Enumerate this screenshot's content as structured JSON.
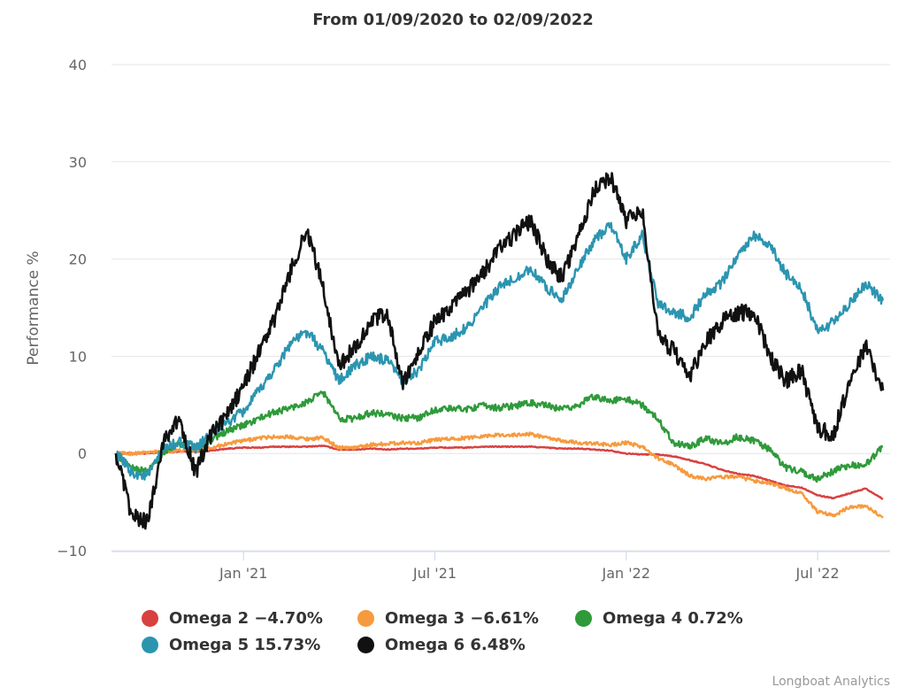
{
  "chart_data": {
    "type": "line",
    "title": "From 01/09/2020 to 02/09/2022",
    "ylabel": "Performance %",
    "xlabel": "",
    "ylim": [
      -10,
      40
    ],
    "yticks": [
      -10,
      0,
      10,
      20,
      30,
      40
    ],
    "ytick_labels": [
      "−10",
      "0",
      "10",
      "20",
      "30",
      "40"
    ],
    "xlim": [
      0,
      24.05
    ],
    "xticks": [
      {
        "label": "Jan '21",
        "x": 4.0
      },
      {
        "label": "Jul '21",
        "x": 10.0
      },
      {
        "label": "Jan '22",
        "x": 16.0
      },
      {
        "label": "Jul '22",
        "x": 22.0
      }
    ],
    "x_unit": "months since 01/09/2020",
    "grid": true,
    "legend_position": "bottom",
    "series": [
      {
        "name": "Omega 2",
        "legend_label": "Omega 2 −4.70%",
        "color": "#d94040",
        "x": [
          0,
          0.5,
          1,
          1.5,
          2,
          2.5,
          3,
          3.5,
          4,
          4.5,
          5,
          5.5,
          6,
          6.5,
          7,
          7.5,
          8,
          8.5,
          9,
          9.5,
          10,
          10.5,
          11,
          11.5,
          12,
          12.5,
          13,
          13.5,
          14,
          14.5,
          15,
          15.5,
          16,
          16.5,
          17,
          17.5,
          18,
          18.5,
          19,
          19.5,
          20,
          20.5,
          21,
          21.5,
          22,
          22.5,
          23,
          23.5,
          24.05
        ],
        "values": [
          0,
          0,
          0,
          0.1,
          0.2,
          0.2,
          0.3,
          0.5,
          0.6,
          0.6,
          0.7,
          0.7,
          0.7,
          0.8,
          0.4,
          0.4,
          0.5,
          0.4,
          0.5,
          0.5,
          0.6,
          0.6,
          0.6,
          0.7,
          0.7,
          0.7,
          0.7,
          0.6,
          0.5,
          0.5,
          0.4,
          0.3,
          0.0,
          -0.1,
          -0.1,
          -0.3,
          -0.7,
          -1.1,
          -1.7,
          -2.1,
          -2.3,
          -2.8,
          -3.3,
          -3.5,
          -4.3,
          -4.6,
          -4.1,
          -3.6,
          -4.7
        ]
      },
      {
        "name": "Omega 3",
        "legend_label": "Omega 3 −6.61%",
        "color": "#f79a3e",
        "x": [
          0,
          0.5,
          1,
          1.5,
          2,
          2.5,
          3,
          3.5,
          4,
          4.5,
          5,
          5.5,
          6,
          6.5,
          7,
          7.5,
          8,
          8.5,
          9,
          9.5,
          10,
          10.5,
          11,
          11.5,
          12,
          12.5,
          13,
          13.5,
          14,
          14.5,
          15,
          15.5,
          16,
          16.5,
          17,
          17.5,
          18,
          18.5,
          19,
          19.5,
          20,
          20.5,
          21,
          21.5,
          22,
          22.5,
          23,
          23.5,
          24.05
        ],
        "values": [
          0,
          0,
          0.1,
          0.2,
          0.3,
          0.4,
          0.6,
          1.0,
          1.3,
          1.6,
          1.7,
          1.7,
          1.5,
          1.6,
          0.6,
          0.6,
          0.9,
          1.0,
          1.1,
          1.1,
          1.4,
          1.5,
          1.6,
          1.8,
          1.9,
          1.9,
          2.0,
          1.6,
          1.3,
          1.1,
          1.0,
          0.9,
          1.1,
          0.7,
          -0.5,
          -1.2,
          -2.3,
          -2.6,
          -2.4,
          -2.4,
          -2.8,
          -3.0,
          -3.6,
          -4.1,
          -6.0,
          -6.4,
          -5.5,
          -5.4,
          -6.6
        ]
      },
      {
        "name": "Omega 4",
        "legend_label": "Omega 4 0.72%",
        "color": "#2f9a3a",
        "x": [
          0,
          0.5,
          1,
          1.5,
          2,
          2.5,
          3,
          3.5,
          4,
          4.5,
          5,
          5.5,
          6,
          6.5,
          7,
          7.5,
          8,
          8.5,
          9,
          9.5,
          10,
          10.5,
          11,
          11.5,
          12,
          12.5,
          13,
          13.5,
          14,
          14.5,
          15,
          15.5,
          16,
          16.5,
          17,
          17.5,
          18,
          18.5,
          19,
          19.5,
          20,
          20.5,
          21,
          21.5,
          22,
          22.5,
          23,
          23.5,
          24.05
        ],
        "values": [
          0,
          -1.5,
          -1.8,
          0.2,
          1.0,
          0.4,
          1.5,
          2.3,
          2.9,
          3.6,
          4.3,
          4.7,
          5.3,
          6.3,
          3.6,
          3.6,
          4.2,
          4.0,
          3.6,
          3.7,
          4.5,
          4.6,
          4.6,
          4.9,
          4.7,
          4.9,
          5.2,
          4.9,
          4.5,
          5.0,
          5.9,
          5.4,
          5.6,
          5.0,
          3.5,
          1.1,
          0.7,
          1.6,
          1.0,
          1.7,
          1.3,
          0.4,
          -1.5,
          -1.9,
          -2.6,
          -1.8,
          -1.2,
          -1.2,
          0.72
        ]
      },
      {
        "name": "Omega 5",
        "legend_label": "Omega 5 15.73%",
        "color": "#2b95b0",
        "x": [
          0,
          0.5,
          1,
          1.5,
          2,
          2.5,
          3,
          3.5,
          4,
          4.5,
          5,
          5.5,
          6,
          6.5,
          7,
          7.5,
          8,
          8.5,
          9,
          9.5,
          10,
          10.5,
          11,
          11.5,
          12,
          12.5,
          13,
          13.5,
          14,
          14.5,
          15,
          15.5,
          16,
          16.5,
          17,
          17.5,
          18,
          18.5,
          19,
          19.5,
          20,
          20.5,
          21,
          21.5,
          22,
          22.5,
          23,
          23.5,
          24.05
        ],
        "values": [
          0,
          -2.0,
          -2.3,
          0.5,
          1.2,
          0.5,
          2.0,
          3.2,
          4.3,
          6.5,
          8.8,
          11.5,
          12.5,
          10.5,
          7.5,
          9.0,
          10.0,
          9.5,
          7.5,
          8.5,
          11.5,
          12.0,
          13.0,
          15.0,
          17.0,
          18.0,
          19.0,
          17.0,
          16.0,
          19.0,
          22.0,
          23.5,
          20.0,
          22.5,
          15.5,
          14.5,
          14.0,
          16.5,
          17.5,
          20.5,
          22.5,
          21.5,
          18.5,
          17.0,
          12.5,
          13.5,
          15.5,
          17.5,
          15.73
        ]
      },
      {
        "name": "Omega 6",
        "legend_label": "Omega 6 6.48%",
        "color": "#111111",
        "x": [
          0,
          0.5,
          1,
          1.5,
          2,
          2.5,
          3,
          3.5,
          4,
          4.5,
          5,
          5.5,
          6,
          6.5,
          7,
          7.5,
          8,
          8.5,
          9,
          9.5,
          10,
          10.5,
          11,
          11.5,
          12,
          12.5,
          13,
          13.5,
          14,
          14.5,
          15,
          15.5,
          16,
          16.5,
          17,
          17.5,
          18,
          18.5,
          19,
          19.5,
          20,
          20.5,
          21,
          21.5,
          22,
          22.5,
          23,
          23.5,
          24.05
        ],
        "values": [
          0,
          -6.5,
          -7.0,
          1.5,
          3.5,
          -2.0,
          2.0,
          4.0,
          7.0,
          10.5,
          14.0,
          19.0,
          23.0,
          17.0,
          9.0,
          11.0,
          13.5,
          14.5,
          7.0,
          10.5,
          13.5,
          15.0,
          16.5,
          18.5,
          21.0,
          22.5,
          24.0,
          20.0,
          18.0,
          22.5,
          27.0,
          28.5,
          24.0,
          25.0,
          12.0,
          10.5,
          8.0,
          11.5,
          13.5,
          14.5,
          14.5,
          10.0,
          7.5,
          8.5,
          2.5,
          2.0,
          7.5,
          11.0,
          6.48
        ]
      }
    ]
  },
  "credits": "Longboat Analytics"
}
